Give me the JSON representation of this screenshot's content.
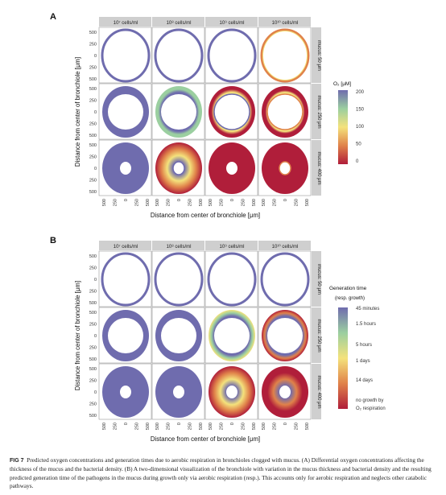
{
  "figure": {
    "panels": [
      {
        "letter": "A",
        "columns": [
          "10⁷ cells/ml",
          "10⁸ cells/ml",
          "10⁹ cells/ml",
          "10¹⁰ cells/ml"
        ],
        "rows": [
          "mucus: 50 μm",
          "mucus: 250 μm",
          "mucus: 400 μm"
        ],
        "ylabel": "Distance from center of bronchiole [μm]",
        "xlabel": "Distance from center of bronchiole [μm]",
        "legend_title": "O₂ [μM]",
        "legend_labels": [
          "200",
          "150",
          "100",
          "50",
          "0"
        ],
        "legend_colors": [
          "#6f6cae",
          "#9bcfa0",
          "#f4e27c",
          "#e0824a",
          "#b01e3a"
        ]
      },
      {
        "letter": "B",
        "columns": [
          "10⁷ cells/ml",
          "10⁸ cells/ml",
          "10⁹ cells/ml",
          "10¹⁰ cells/ml"
        ],
        "rows": [
          "mucus: 50 μm",
          "mucus: 250 μm",
          "mucus: 400 μm"
        ],
        "ylabel": "Distance from center of bronchiole [μm]",
        "xlabel": "Distance from center of bronchiole [μm]",
        "legend_title": "Generation time",
        "legend_subtitle": "(resp. growth)",
        "legend_labels": [
          "45 minutes",
          "1.5 hours",
          "5 hours",
          "1 days",
          "14 days",
          "no growth by",
          "O₂ respiration"
        ],
        "legend_colors": [
          "#6f6cae",
          "#9bcfa0",
          "#f4e27c",
          "#e0824a",
          "#b01e3a"
        ]
      }
    ],
    "y_ticks": [
      "500",
      "250",
      "0",
      "250",
      "500"
    ],
    "x_ticks": [
      "500",
      "250",
      "0",
      "250",
      "500"
    ]
  },
  "caption": {
    "label": "FIG 7",
    "text": "Predicted oxygen concentrations and generation times due to aerobic respiration in bronchioles clogged with mucus. (A) Differential oxygen concentrations affecting the thickness of the mucus and the bacterial density. (B) A two-dimensional visualization of the bronchiole with variation in the mucus thickness and bacterial density and the resulting predicted generation time of the pathogens in the mucus during growth only via aerobic respiration (resp.). This accounts only for aerobic respiration and neglects other catabolic pathways."
  }
}
